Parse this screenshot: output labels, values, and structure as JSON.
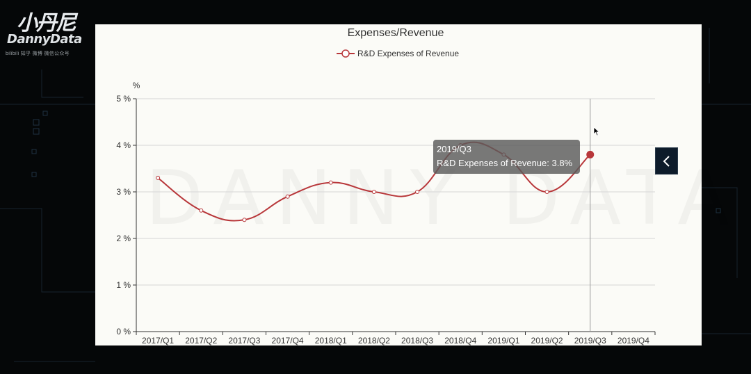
{
  "logo": {
    "cn": "小丹尼",
    "en": "DannyData",
    "sub": "bilibili  知乎  微博  微信公众号"
  },
  "watermark": "DANNY DATA",
  "tooltip": {
    "title": "2019/Q3",
    "line": "R&D Expenses of Revenue: 3.8%"
  },
  "colors": {
    "series": "#b8373a",
    "panel_bg": "#fbfbf7",
    "page_bg": "#050708",
    "button_bg": "#0d1b2a"
  },
  "icons": {
    "collapse": "chevron-left-icon",
    "cursor": "mouse-pointer-icon"
  },
  "chart_data": {
    "type": "line",
    "title": "Expenses/Revenue",
    "ylabel": "%",
    "categories": [
      "2017/Q1",
      "2017/Q2",
      "2017/Q3",
      "2017/Q4",
      "2018/Q1",
      "2018/Q2",
      "2018/Q3",
      "2018/Q4",
      "2019/Q1",
      "2019/Q2",
      "2019/Q3",
      "2019/Q4"
    ],
    "series": [
      {
        "name": "R&D Expenses of Revenue",
        "values": [
          3.3,
          2.6,
          2.4,
          2.9,
          3.2,
          3.0,
          3.0,
          4.0,
          3.8,
          3.0,
          3.8,
          null
        ]
      }
    ],
    "yticks": [
      "0 %",
      "1 %",
      "2 %",
      "3 %",
      "4 %",
      "5 %"
    ],
    "ylim": [
      0,
      5
    ],
    "smooth": true,
    "grid": true,
    "legend": "top-center",
    "highlighted_category": "2019/Q3"
  }
}
